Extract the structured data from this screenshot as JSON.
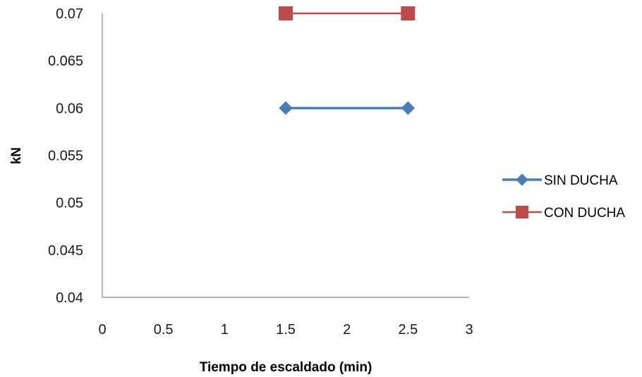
{
  "chart_data": {
    "type": "line",
    "title": "",
    "xlabel": "Tiempo de escaldado (min)",
    "ylabel": "kN",
    "xlim": [
      0,
      3
    ],
    "ylim": [
      0.04,
      0.07
    ],
    "x_ticks": [
      "0",
      "0.5",
      "1",
      "1.5",
      "2",
      "2.5",
      "3"
    ],
    "y_ticks": [
      "0.04",
      "0.045",
      "0.05",
      "0.055",
      "0.06",
      "0.065",
      "0.07"
    ],
    "grid": false,
    "legend_position": "right",
    "series": [
      {
        "name": "SIN DUCHA",
        "x": [
          1.5,
          2.5
        ],
        "y": [
          0.06,
          0.06
        ],
        "color": "#4a7ebb",
        "marker": "diamond"
      },
      {
        "name": "CON DUCHA",
        "x": [
          1.5,
          2.5
        ],
        "y": [
          0.07,
          0.07
        ],
        "color": "#be4b48",
        "marker": "square"
      }
    ]
  }
}
